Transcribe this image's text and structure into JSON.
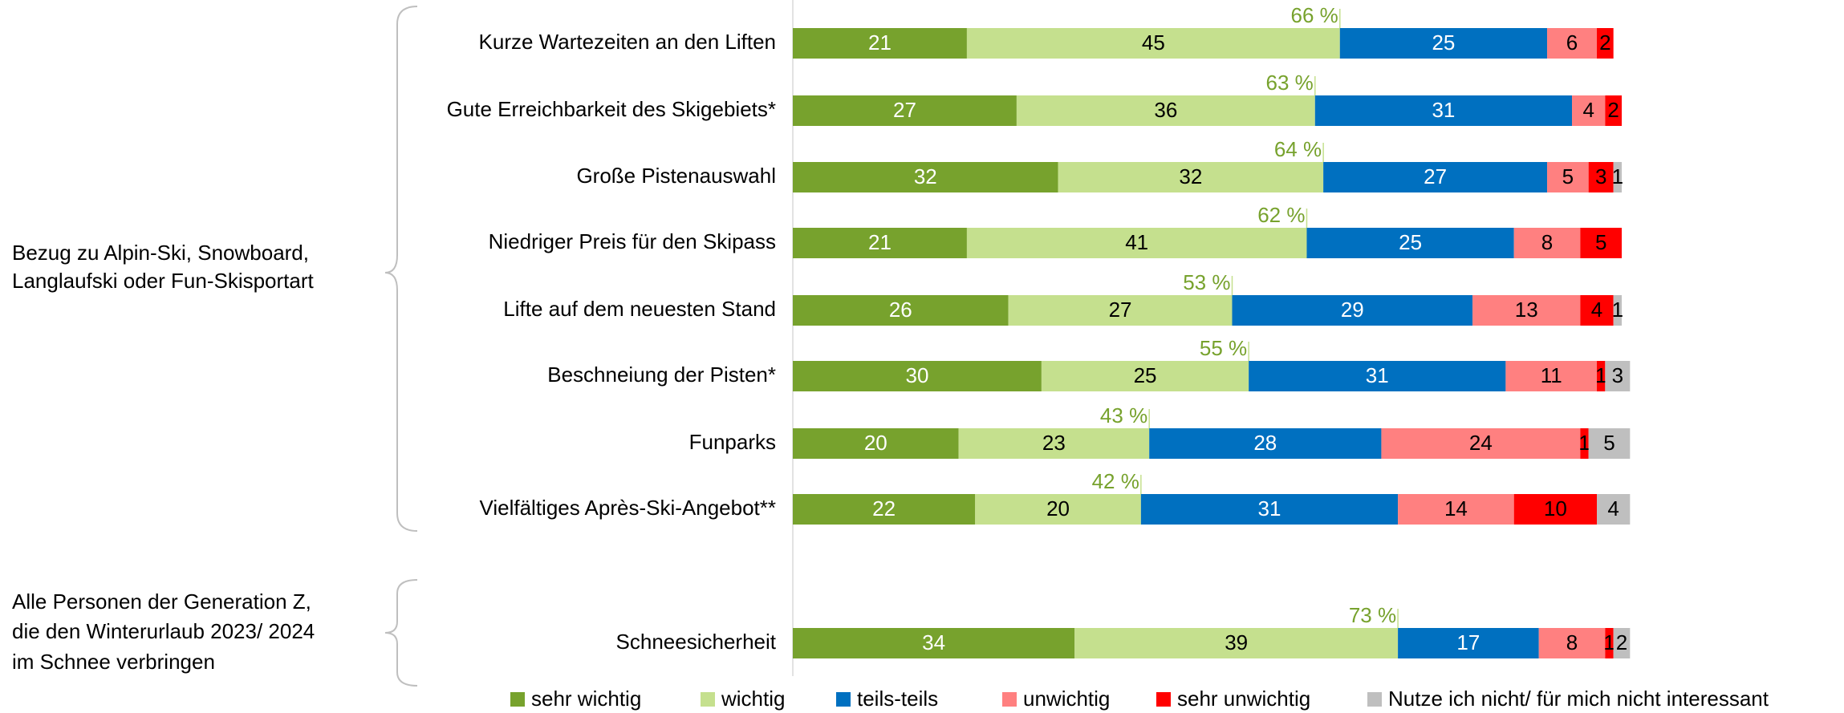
{
  "chart_data": {
    "type": "stacked_barh",
    "categories": [
      "Kurze Wartezeiten an den Liften",
      "Gute Erreichbarkeit des Skigebiets*",
      "Große Pistenauswahl",
      "Niedriger Preis für den Skipass",
      "Lifte auf dem neuesten Stand",
      "Beschneiung der Pisten*",
      "Funparks",
      "Vielfältiges Après-Ski-Angebot**",
      "Schneesicherheit"
    ],
    "series": [
      {
        "name": "sehr wichtig",
        "color": "#77a22d",
        "text_color": "#ffffff",
        "values": [
          21,
          27,
          32,
          21,
          26,
          30,
          20,
          22,
          34
        ]
      },
      {
        "name": "wichtig",
        "color": "#c5e08e",
        "text_color": "#000000",
        "values": [
          45,
          36,
          32,
          41,
          27,
          25,
          23,
          20,
          39
        ]
      },
      {
        "name": "teils-teils",
        "color": "#0070c0",
        "text_color": "#ffffff",
        "values": [
          25,
          31,
          27,
          25,
          29,
          31,
          28,
          31,
          17
        ]
      },
      {
        "name": "unwichtig",
        "color": "#ff8080",
        "text_color": "#000000",
        "values": [
          6,
          4,
          5,
          8,
          13,
          11,
          24,
          14,
          8
        ]
      },
      {
        "name": "sehr unwichtig",
        "color": "#ff0000",
        "text_color": "#000000",
        "values": [
          2,
          2,
          3,
          5,
          4,
          1,
          1,
          10,
          1
        ]
      },
      {
        "name": "Nutze ich nicht/ für mich nicht interessant",
        "color": "#bfbfbf",
        "text_color": "#000000",
        "values": [
          null,
          null,
          1,
          null,
          1,
          3,
          5,
          4,
          2
        ]
      }
    ],
    "totals": {
      "color": "#77a22d",
      "values": [
        66,
        63,
        64,
        62,
        53,
        55,
        43,
        42,
        73
      ],
      "value_labels": [
        "66 %",
        "63 %",
        "64 %",
        "62 %",
        "53 %",
        "55 %",
        "43 %",
        "42 %",
        "73 %"
      ]
    },
    "groups": [
      {
        "lines": [
          "Bezug zu Alpin-Ski, Snowboard,",
          "Langlaufski oder Fun-Skisportart"
        ]
      },
      {
        "lines": [
          "Alle Personen der Generation Z,",
          "die den Winterurlaub 2023/ 2024",
          "im Schnee verbringen"
        ]
      }
    ],
    "xlim": [
      0,
      100
    ]
  }
}
